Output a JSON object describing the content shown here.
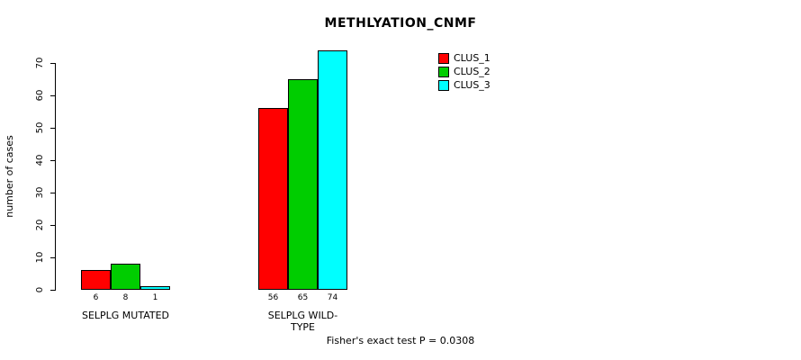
{
  "chart_data": {
    "type": "bar",
    "title": "METHLYATION_CNMF",
    "xlabel": "",
    "ylabel": "number of cases",
    "footnote": "Fisher's exact test P = 0.0308",
    "grid": false,
    "legend_position": "top-right",
    "ylim": [
      0,
      75
    ],
    "yticks": [
      0,
      10,
      20,
      30,
      40,
      50,
      60,
      70
    ],
    "series": [
      {
        "name": "CLUS_1",
        "color": "#FF0000"
      },
      {
        "name": "CLUS_2",
        "color": "#00CD00"
      },
      {
        "name": "CLUS_3",
        "color": "#00FFFF"
      }
    ],
    "groups": [
      {
        "label": "SELPLG MUTATED",
        "values": [
          6,
          8,
          1
        ]
      },
      {
        "label": "SELPLG WILD-TYPE",
        "values": [
          56,
          65,
          74
        ]
      }
    ]
  }
}
